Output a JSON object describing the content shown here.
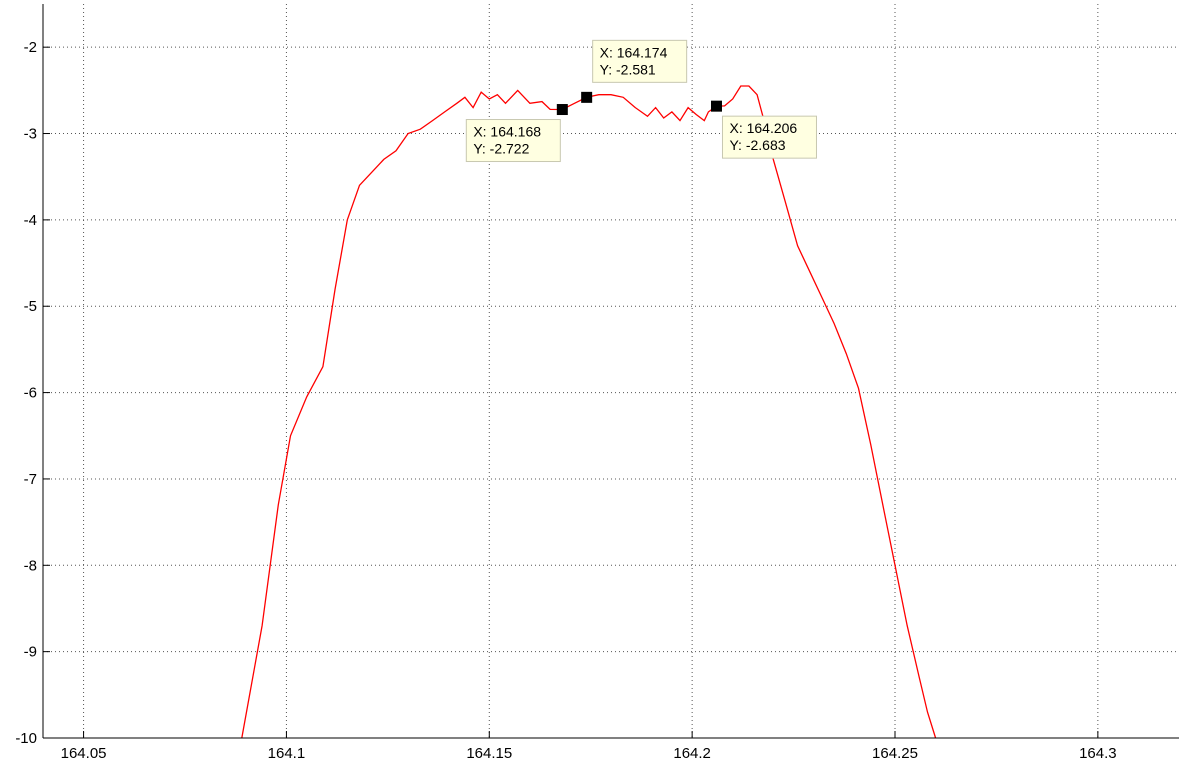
{
  "chart_data": {
    "type": "line",
    "title": "",
    "xlabel": "",
    "ylabel": "",
    "xlim": [
      164.04,
      164.32
    ],
    "ylim": [
      -10,
      -1.5
    ],
    "xticks": [
      164.05,
      164.1,
      164.15,
      164.2,
      164.25,
      164.3
    ],
    "xtick_labels": [
      "164.05",
      "164.1",
      "164.15",
      "164.2",
      "164.25",
      "164.3"
    ],
    "yticks": [
      -10,
      -9,
      -8,
      -7,
      -6,
      -5,
      -4,
      -3,
      -2
    ],
    "ytick_labels": [
      "-10",
      "-9",
      "-8",
      "-7",
      "-6",
      "-5",
      "-4",
      "-3",
      "-2"
    ],
    "grid": true,
    "grid_style": "dotted",
    "series": [
      {
        "color": "#ff0000",
        "x": [
          164.089,
          164.094,
          164.098,
          164.101,
          164.105,
          164.109,
          164.112,
          164.115,
          164.118,
          164.121,
          164.124,
          164.127,
          164.13,
          164.133,
          164.136,
          164.139,
          164.142,
          164.144,
          164.146,
          164.148,
          164.15,
          164.152,
          164.154,
          164.157,
          164.16,
          164.163,
          164.165,
          164.168,
          164.171,
          164.174,
          164.177,
          164.18,
          164.183,
          164.186,
          164.189,
          164.191,
          164.193,
          164.195,
          164.197,
          164.199,
          164.201,
          164.203,
          164.204,
          164.206,
          164.208,
          164.21,
          164.212,
          164.214,
          164.216,
          164.218,
          164.22,
          164.223,
          164.226,
          164.229,
          164.232,
          164.235,
          164.238,
          164.241,
          164.244,
          164.247,
          164.25,
          164.253,
          164.256,
          164.258,
          164.26
        ],
        "y": [
          -10.0,
          -8.7,
          -7.3,
          -6.5,
          -6.05,
          -5.7,
          -4.8,
          -4.0,
          -3.6,
          -3.45,
          -3.3,
          -3.2,
          -3.0,
          -2.95,
          -2.85,
          -2.75,
          -2.65,
          -2.58,
          -2.7,
          -2.52,
          -2.6,
          -2.55,
          -2.65,
          -2.5,
          -2.65,
          -2.63,
          -2.72,
          -2.722,
          -2.65,
          -2.581,
          -2.55,
          -2.55,
          -2.58,
          -2.7,
          -2.8,
          -2.7,
          -2.82,
          -2.75,
          -2.85,
          -2.7,
          -2.78,
          -2.85,
          -2.75,
          -2.683,
          -2.68,
          -2.6,
          -2.45,
          -2.45,
          -2.55,
          -2.9,
          -3.3,
          -3.8,
          -4.3,
          -4.6,
          -4.9,
          -5.2,
          -5.55,
          -5.95,
          -6.6,
          -7.3,
          -8.0,
          -8.7,
          -9.3,
          -9.7,
          -10.0
        ]
      }
    ],
    "data_tips": [
      {
        "x": 164.168,
        "y": -2.722,
        "x_text": "X: 164.168",
        "y_text": "Y: -2.722",
        "placement": "below-left"
      },
      {
        "x": 164.174,
        "y": -2.581,
        "x_text": "X: 164.174",
        "y_text": "Y: -2.581",
        "placement": "above-right"
      },
      {
        "x": 164.206,
        "y": -2.683,
        "x_text": "X: 164.206",
        "y_text": "Y: -2.683",
        "placement": "below-right"
      }
    ],
    "colors": {
      "line": "#ff0000",
      "tip_fill": "#ffffe1",
      "tip_border": "#c8c8b0",
      "grid": "#555555"
    }
  }
}
